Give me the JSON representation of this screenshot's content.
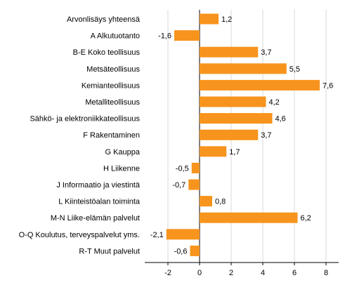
{
  "chart_data": {
    "type": "bar",
    "orientation": "horizontal",
    "categories": [
      "Arvonlisäys yhteensä",
      "A Alkutuotanto",
      "B-E Koko teollisuus",
      "Metsäteollisuus",
      "Kemianteollisuus",
      "Metalliteollisuus",
      "Sähkö- ja elektroniikkateollisuus",
      "F Rakentaminen",
      "G Kauppa",
      "H Liikenne",
      "J Informaatio ja viestintä",
      "L Kiinteistöalan toiminta",
      "M-N Liike-elämän palvelut",
      "O-Q Koulutus, terveyspalvelut yms.",
      "R-T Muut palvelut"
    ],
    "values": [
      1.2,
      -1.6,
      3.7,
      5.5,
      7.6,
      4.2,
      4.6,
      3.7,
      1.7,
      -0.5,
      -0.7,
      0.8,
      6.2,
      -2.1,
      -0.6
    ],
    "value_labels": [
      "1,2",
      "-1,6",
      "3,7",
      "5,5",
      "7,6",
      "4,2",
      "4,6",
      "3,7",
      "1,7",
      "-0,5",
      "-0,7",
      "0,8",
      "6,2",
      "-2,1",
      "-0,6"
    ],
    "xlim": [
      -3.6,
      8.8
    ],
    "xticks": [
      -2,
      0,
      2,
      4,
      6,
      8
    ],
    "xtick_labels": [
      "-2",
      "0",
      "2",
      "4",
      "6",
      "8"
    ],
    "grid": "vertical",
    "legend": "none",
    "bar_color": "#f7941d",
    "grid_color": "#d9d9d9",
    "axis_color": "#000000"
  }
}
